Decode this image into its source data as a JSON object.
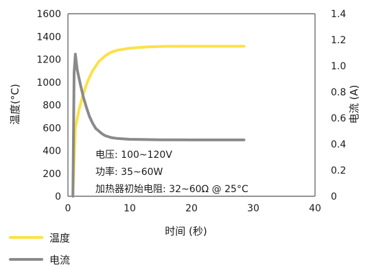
{
  "chart_data": {
    "type": "line",
    "xlabel": "时间 (秒)",
    "ylabel_left": "温度(°C)",
    "ylabel_right": "电流 (A)",
    "xlim": [
      0,
      40
    ],
    "ylim_left": [
      0,
      1600
    ],
    "ylim_right": [
      0,
      1.4
    ],
    "x_ticks": [
      0,
      10,
      20,
      30,
      40
    ],
    "y_ticks_left": [
      0,
      200,
      400,
      600,
      800,
      1000,
      1200,
      1400,
      1600
    ],
    "y_ticks_right": [
      0,
      0.2,
      0.4,
      0.6,
      0.8,
      1.0,
      1.2,
      1.4
    ],
    "x_tick_labels": [
      "0",
      "10",
      "20",
      "30",
      "40"
    ],
    "y_tick_labels_left": [
      "0",
      "200",
      "400",
      "600",
      "800",
      "1000",
      "1200",
      "1400",
      "1600"
    ],
    "y_tick_labels_right": [
      "0",
      "0.2",
      "0.4",
      "0.6",
      "0.8",
      "1.0",
      "1.2",
      "1.4"
    ],
    "grid": false,
    "legend_position": "bottom-left",
    "series": [
      {
        "name": "温度",
        "axis": "left",
        "color": "#fde047",
        "x": [
          0.8,
          1.2,
          1.8,
          2.5,
          3.2,
          4.0,
          5.0,
          6.0,
          7.0,
          8.0,
          10.0,
          13.0,
          16.0,
          20.0,
          24.0,
          28.5
        ],
        "y": [
          20,
          600,
          760,
          900,
          1010,
          1100,
          1180,
          1230,
          1262,
          1280,
          1298,
          1310,
          1314,
          1315,
          1315,
          1315
        ]
      },
      {
        "name": "电流",
        "axis": "right",
        "color": "#8a8a8a",
        "x": [
          0.8,
          1.0,
          1.2,
          1.5,
          2.0,
          2.5,
          3.0,
          3.5,
          4.0,
          4.5,
          5.0,
          5.5,
          6.0,
          7.0,
          8.0,
          10.0,
          12.0,
          15.0,
          20.0,
          25.0,
          28.5
        ],
        "y": [
          0.0,
          0.95,
          1.09,
          0.97,
          0.86,
          0.76,
          0.68,
          0.61,
          0.56,
          0.52,
          0.5,
          0.48,
          0.465,
          0.45,
          0.443,
          0.437,
          0.435,
          0.433,
          0.432,
          0.432,
          0.432
        ]
      }
    ],
    "annotations": [
      "电压: 100~120V",
      "功率: 35~60W",
      "加热器初始电阻: 32~60Ω @ 25°C"
    ]
  }
}
